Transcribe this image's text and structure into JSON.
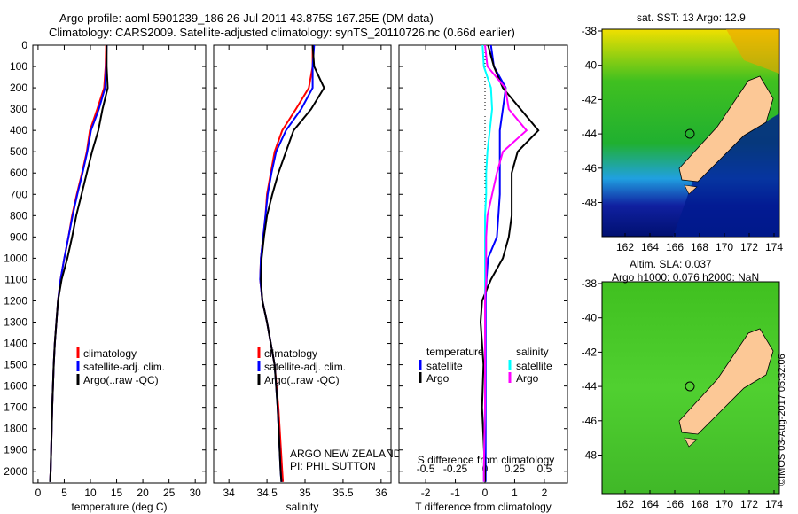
{
  "title": {
    "line1": "Argo profile: aoml 5901239_186 26-Jul-2011 43.875S 167.25E (DM data)",
    "line2": "Climatology: CARS2009. Satellite-adjusted climatology: synTS_20110726.nc (0.66d earlier)"
  },
  "colors": {
    "climatology": "#ff0000",
    "satellite": "#0000ff",
    "argo": "#000000",
    "s_satellite": "#00ffff",
    "s_argo": "#ff00ff"
  },
  "chart_data": [
    {
      "type": "line",
      "id": "temperature",
      "xlabel": "temperature (deg C)",
      "ylabel": "",
      "xlim": [
        -1,
        32
      ],
      "ylim": [
        2055,
        0
      ],
      "xticks": [
        "0",
        "5",
        "10",
        "15",
        "20",
        "25",
        "30"
      ],
      "xtickvals": [
        0,
        5,
        10,
        15,
        20,
        25,
        30
      ],
      "yticks": [
        "0",
        "100",
        "200",
        "300",
        "400",
        "500",
        "600",
        "700",
        "800",
        "900",
        "1000",
        "1100",
        "1200",
        "1300",
        "1400",
        "1500",
        "1600",
        "1700",
        "1800",
        "1900",
        "2000"
      ],
      "depth": [
        0,
        100,
        200,
        300,
        400,
        500,
        600,
        700,
        800,
        900,
        1000,
        1100,
        1200,
        1300,
        1400,
        1500,
        1700,
        2000,
        2050
      ],
      "series": [
        {
          "name": "climatology",
          "color": "#ff0000",
          "values": [
            13,
            12.9,
            12.6,
            11.3,
            9.9,
            9.3,
            8.4,
            7.4,
            6.5,
            5.8,
            5,
            4.3,
            3.8,
            3.5,
            3.2,
            3,
            2.7,
            2.4,
            2.3
          ]
        },
        {
          "name": "satellite-adj. clim.",
          "color": "#0000ff",
          "values": [
            13.1,
            13,
            12.8,
            11.6,
            10.1,
            9.4,
            8.5,
            7.5,
            6.6,
            5.8,
            5,
            4.3,
            3.8,
            3.5,
            3.2,
            3,
            2.7,
            2.4,
            2.3
          ]
        },
        {
          "name": "Argo(..raw -QC)",
          "color": "#000000",
          "values": [
            13.1,
            13.1,
            13.3,
            12.3,
            11.5,
            10.3,
            9.3,
            8.3,
            7.3,
            6.5,
            5.6,
            4.5,
            3.8,
            3.5,
            3.2,
            3,
            2.7,
            2.4,
            2.3
          ]
        }
      ],
      "legend": "center-left"
    },
    {
      "type": "line",
      "id": "salinity",
      "xlabel": "salinity",
      "xlim": [
        33.8,
        36.13
      ],
      "xticks": [
        "34",
        "34.5",
        "35",
        "35.5",
        "36"
      ],
      "xtickvals": [
        34,
        34.5,
        35,
        35.5,
        36
      ],
      "depth": [
        0,
        100,
        200,
        300,
        400,
        500,
        600,
        700,
        800,
        900,
        1000,
        1100,
        1200,
        1300,
        1400,
        1500,
        1700,
        2000,
        2050
      ],
      "series": [
        {
          "name": "climatology",
          "color": "#ff0000",
          "values": [
            35.1,
            35.1,
            35.05,
            34.88,
            34.7,
            34.6,
            34.55,
            34.5,
            34.48,
            34.45,
            34.42,
            34.41,
            34.44,
            34.5,
            34.55,
            34.6,
            34.65,
            34.7,
            34.71
          ]
        },
        {
          "name": "satellite-adj. clim.",
          "color": "#0000ff",
          "values": [
            35.12,
            35.1,
            35.1,
            34.95,
            34.75,
            34.62,
            34.56,
            34.51,
            34.48,
            34.45,
            34.42,
            34.41,
            34.44,
            34.5,
            34.55,
            34.6,
            34.64,
            34.68,
            34.69
          ]
        },
        {
          "name": "Argo(..raw -QC)",
          "color": "#000000",
          "values": [
            35.1,
            35.12,
            35.25,
            35.08,
            34.85,
            34.75,
            34.65,
            34.57,
            34.5,
            34.46,
            34.43,
            34.42,
            34.44,
            34.5,
            34.55,
            34.6,
            34.64,
            34.68,
            34.69
          ]
        }
      ],
      "annotation": [
        "ARGO NEW ZEALAND",
        "PI: PHIL SUTTON"
      ]
    },
    {
      "type": "line",
      "id": "difference",
      "xlabel": "T difference from climatology",
      "xlabel2": "S difference from climatology",
      "xlim": [
        -2.9,
        2.78
      ],
      "xticks": [
        "-2",
        "-1",
        "0",
        "1",
        "2"
      ],
      "xtickvals": [
        -2,
        -1,
        0,
        1,
        2
      ],
      "xticks2": [
        "-0.5",
        "-0.25",
        "0",
        "0.25",
        "0.5"
      ],
      "xtickvals2": [
        -0.5,
        -0.25,
        0,
        0.25,
        0.5
      ],
      "depth": [
        0,
        100,
        200,
        300,
        400,
        500,
        600,
        700,
        800,
        900,
        1000,
        1100,
        1200,
        1300,
        1400,
        1500,
        1700,
        2000,
        2050
      ],
      "series": [
        {
          "name": "satellite",
          "group": "temperature",
          "scale": "T",
          "color": "#0000ff",
          "values": [
            0.2,
            0.3,
            0.7,
            0.6,
            0.5,
            0.5,
            0.5,
            0.5,
            0.45,
            0.4,
            0.1,
            0.05,
            0.02,
            0.02,
            0.02,
            0.02,
            0.02,
            0.02,
            0.02
          ]
        },
        {
          "name": "Argo",
          "group": "temperature",
          "scale": "T",
          "color": "#000000",
          "values": [
            0.1,
            0.3,
            0.6,
            1.2,
            1.8,
            1.1,
            0.9,
            0.9,
            0.9,
            0.8,
            0.6,
            0.2,
            -0.1,
            -0.15,
            -0.1,
            -0.05,
            -0.1,
            0,
            0
          ]
        },
        {
          "name": "satellite",
          "group": "salinity",
          "scale": "S",
          "color": "#00ffff",
          "values": [
            -0.02,
            -0.01,
            0.05,
            0.06,
            0.04,
            0.02,
            0.01,
            0.01,
            0,
            0,
            0,
            0,
            0,
            0,
            0,
            0,
            0,
            -0.01,
            -0.01
          ]
        },
        {
          "name": "Argo",
          "group": "salinity",
          "scale": "S",
          "color": "#ff00ff",
          "values": [
            0,
            0.02,
            0.17,
            0.2,
            0.35,
            0.15,
            0.1,
            0.06,
            0.02,
            0.01,
            0.01,
            0.01,
            0,
            0,
            0,
            0,
            0,
            -0.01,
            -0.01
          ]
        }
      ],
      "legend_headers": [
        "temperature",
        "salinity"
      ]
    }
  ],
  "map_sst": {
    "title": "sat. SST: 13 Argo: 12.9",
    "yticks": [
      "-38",
      "-40",
      "-42",
      "-44",
      "-46",
      "-48"
    ],
    "xticks": [
      "162",
      "164",
      "166",
      "168",
      "170",
      "172",
      "174"
    ]
  },
  "map_sla": {
    "title1": "Altim. SLA: 0.037",
    "title2": "Argo h1000: 0.076 h2000: NaN",
    "yticks": [
      "-38",
      "-40",
      "-42",
      "-44",
      "-46",
      "-48"
    ],
    "xticks": [
      "162",
      "164",
      "166",
      "168",
      "170",
      "172",
      "174"
    ]
  },
  "credit": "©IMOS 03-Aug-2017 05:32:06"
}
